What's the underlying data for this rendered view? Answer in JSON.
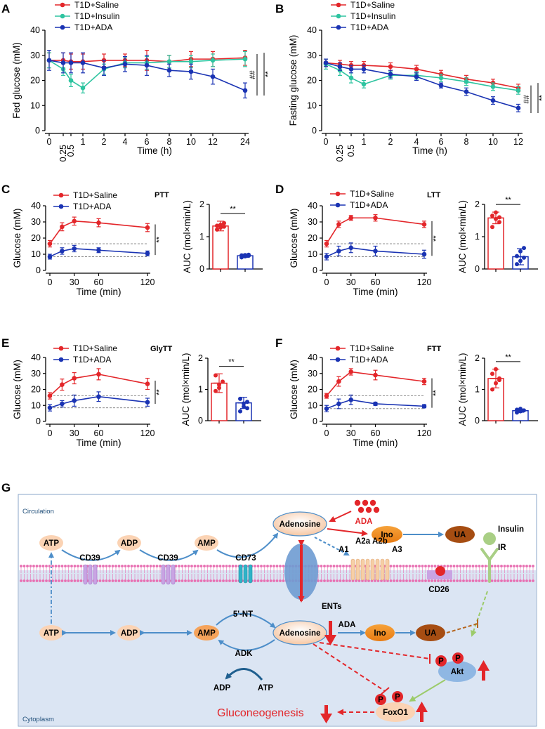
{
  "colors": {
    "saline": "#e3262a",
    "insulin": "#2ec4a0",
    "ada": "#1a33b3",
    "arrow_blue": "#4d8ec9",
    "cytoplasm": "#dbe5f3",
    "membrane": "#e86fb2",
    "node_orange": "#f08d1f",
    "node_peach": "#fbd3b4",
    "node_brown": "#a64d12"
  },
  "chart_data": [
    {
      "id": "A",
      "type": "line",
      "letter": "A",
      "ylabel": "Fed glucose (mM)",
      "xlabel": "Time (h)",
      "ylim": [
        0,
        40
      ],
      "yticks": [
        0,
        10,
        20,
        30,
        40
      ],
      "x": [
        0,
        0.25,
        0.5,
        1,
        2,
        4,
        6,
        8,
        10,
        12,
        24
      ],
      "xtick_labels": [
        "0",
        "0.25",
        "0.5",
        "1",
        "2",
        "4",
        "6",
        "8",
        "10",
        "12",
        "24"
      ],
      "rotated_ticks": [
        1,
        2
      ],
      "series": [
        {
          "name": "T1D+Saline",
          "values": [
            28,
            28,
            27.5,
            27.5,
            28,
            28,
            28,
            27.5,
            28.5,
            28.5,
            29
          ],
          "err": [
            3,
            3,
            3,
            3,
            2.5,
            2.5,
            4,
            2.5,
            3,
            3,
            3
          ]
        },
        {
          "name": "T1D+Insulin",
          "values": [
            28,
            24.5,
            20,
            17,
            24.5,
            27,
            27,
            27.5,
            27.5,
            28,
            28.5
          ],
          "err": [
            3,
            2.5,
            2.5,
            2,
            2,
            2,
            2.5,
            2.5,
            2.5,
            2.5,
            3
          ]
        },
        {
          "name": "T1D+ADA",
          "values": [
            28,
            27,
            27,
            27,
            25,
            26.5,
            26,
            24,
            23.5,
            21.5,
            16
          ],
          "err": [
            4,
            4,
            4,
            4,
            3,
            3,
            4,
            2.5,
            3,
            3,
            3
          ]
        }
      ],
      "legend": [
        "T1D+Saline",
        "T1D+Insulin",
        "T1D+ADA"
      ],
      "annotations": [
        "##",
        "**"
      ]
    },
    {
      "id": "B",
      "type": "line",
      "letter": "B",
      "ylabel": "Fasting glucose (mM)",
      "xlabel": "Time (h)",
      "ylim": [
        0,
        40
      ],
      "yticks": [
        0,
        10,
        20,
        30,
        40
      ],
      "x": [
        0,
        0.25,
        0.5,
        1,
        2,
        4,
        6,
        8,
        10,
        12
      ],
      "xtick_labels": [
        "0",
        "0.25",
        "0.5",
        "1",
        "2",
        "4",
        "6",
        "8",
        "10",
        "12"
      ],
      "rotated_ticks": [
        1,
        2
      ],
      "series": [
        {
          "name": "T1D+Saline",
          "values": [
            27,
            26.5,
            26,
            26,
            25.5,
            24.5,
            22.5,
            20.5,
            19,
            17
          ],
          "err": [
            1.5,
            1.5,
            1.5,
            1.5,
            1.5,
            1.5,
            1.5,
            1.5,
            1.5,
            1.5
          ]
        },
        {
          "name": "T1D+Insulin",
          "values": [
            26.5,
            24,
            21,
            18.5,
            22,
            22,
            21,
            19.5,
            17.5,
            16
          ],
          "err": [
            2,
            2,
            2,
            1.5,
            1.5,
            1.5,
            1.5,
            1.5,
            1.5,
            1.5
          ]
        },
        {
          "name": "T1D+ADA",
          "values": [
            27,
            25.5,
            24.5,
            24.5,
            22.5,
            21.5,
            18,
            15.5,
            12,
            9
          ],
          "err": [
            1.5,
            1.5,
            1.5,
            1.5,
            1.5,
            1.5,
            1,
            1.5,
            1.5,
            1.5
          ]
        }
      ],
      "legend": [
        "T1D+Saline",
        "T1D+Insulin",
        "T1D+ADA"
      ],
      "annotations": [
        "##",
        "**"
      ]
    },
    {
      "id": "C",
      "type": "line",
      "letter": "C",
      "title": "PTT",
      "ylabel": "Glucose (mM)",
      "xlabel": "Time (min)",
      "ylim": [
        0,
        40
      ],
      "yticks": [
        0,
        10,
        20,
        30,
        40
      ],
      "x": [
        0,
        15,
        30,
        60,
        120
      ],
      "xticks": [
        0,
        30,
        60,
        120
      ],
      "series": [
        {
          "name": "T1D+Saline",
          "values": [
            16.5,
            27,
            30.5,
            29.5,
            26.5
          ],
          "err": [
            2,
            2.5,
            2.5,
            2.5,
            2.5
          ]
        },
        {
          "name": "T1D+ADA",
          "values": [
            8.5,
            12,
            13.5,
            12.5,
            10.5
          ],
          "err": [
            1.5,
            2,
            2,
            1.5,
            1.5
          ]
        }
      ],
      "baselines": [
        16.5,
        8.5
      ],
      "legend": [
        "T1D+Saline",
        "T1D+ADA"
      ],
      "annotations": [
        "**"
      ]
    },
    {
      "id": "C2",
      "type": "bar",
      "ylabel": "AUC (mol×min/L)",
      "ylim": [
        0,
        2
      ],
      "yticks": [
        0,
        1,
        2
      ],
      "categories": [
        "T1D+Saline",
        "T1D+ADA"
      ],
      "values": [
        1.33,
        0.41
      ],
      "err": [
        0.15,
        0.05
      ],
      "points": [
        [
          1.22,
          1.28,
          1.31,
          1.34,
          1.37,
          1.42
        ],
        [
          0.36,
          0.39,
          0.41,
          0.42,
          0.43,
          0.44
        ]
      ],
      "annotations": [
        "**"
      ]
    },
    {
      "id": "D",
      "type": "line",
      "letter": "D",
      "title": "LTT",
      "ylabel": "Glucose (mM)",
      "xlabel": "Time (min)",
      "ylim": [
        0,
        40
      ],
      "yticks": [
        0,
        10,
        20,
        30,
        40
      ],
      "x": [
        0,
        15,
        30,
        60,
        120
      ],
      "xticks": [
        0,
        30,
        60,
        120
      ],
      "series": [
        {
          "name": "T1D+Saline",
          "values": [
            16.5,
            28.5,
            32.5,
            32.5,
            28.5
          ],
          "err": [
            2,
            2,
            1.5,
            2,
            2
          ]
        },
        {
          "name": "T1D+ADA",
          "values": [
            8.5,
            12,
            14,
            12,
            10
          ],
          "err": [
            2,
            3,
            3,
            3,
            2.5
          ]
        }
      ],
      "baselines": [
        16.5,
        8.5
      ],
      "legend": [
        "T1D+Saline",
        "T1D+ADA"
      ],
      "annotations": [
        "**"
      ]
    },
    {
      "id": "D2",
      "type": "bar",
      "ylabel": "AUC (mol×min/L)",
      "ylim": [
        0,
        2
      ],
      "yticks": [
        0,
        1,
        2
      ],
      "categories": [
        "T1D+Saline",
        "T1D+ADA"
      ],
      "values": [
        1.58,
        0.38
      ],
      "err": [
        0.18,
        0.25
      ],
      "points": [
        [
          1.3,
          1.55,
          1.6,
          1.65,
          1.75,
          1.45
        ],
        [
          0.15,
          0.25,
          0.35,
          0.4,
          0.55,
          0.65
        ]
      ],
      "annotations": [
        "**"
      ]
    },
    {
      "id": "E",
      "type": "line",
      "letter": "E",
      "title": "GlyTT",
      "ylabel": "Glucose (mM)",
      "xlabel": "Time (min)",
      "ylim": [
        0,
        40
      ],
      "yticks": [
        0,
        10,
        20,
        30,
        40
      ],
      "x": [
        0,
        15,
        30,
        60,
        120
      ],
      "xticks": [
        0,
        30,
        60,
        120
      ],
      "series": [
        {
          "name": "T1D+Saline",
          "values": [
            16,
            23,
            27,
            29.5,
            23.5
          ],
          "err": [
            2,
            3.5,
            3.5,
            3.5,
            3.5
          ]
        },
        {
          "name": "T1D+ADA",
          "values": [
            8.5,
            11,
            13,
            15.5,
            12
          ],
          "err": [
            2,
            2,
            3.5,
            3,
            2.5
          ]
        }
      ],
      "baselines": [
        16,
        8.5
      ],
      "legend": [
        "T1D+Saline",
        "T1D+ADA"
      ],
      "annotations": [
        "**"
      ]
    },
    {
      "id": "E2",
      "type": "bar",
      "ylabel": "AUC (mol×min/L)",
      "ylim": [
        0,
        2
      ],
      "yticks": [
        0,
        1,
        2
      ],
      "categories": [
        "T1D+Saline",
        "T1D+ADA"
      ],
      "values": [
        1.2,
        0.57
      ],
      "err": [
        0.3,
        0.18
      ],
      "points": [
        [
          0.95,
          1.15,
          1.25,
          1.45,
          1.05
        ],
        [
          0.3,
          0.45,
          0.6,
          0.7,
          0.55,
          0.4
        ]
      ],
      "annotations": [
        "**"
      ]
    },
    {
      "id": "F",
      "type": "line",
      "letter": "F",
      "title": "FTT",
      "ylabel": "Glucose (mM)",
      "xlabel": "Time (min)",
      "ylim": [
        0,
        40
      ],
      "yticks": [
        0,
        10,
        20,
        30,
        40
      ],
      "x": [
        0,
        15,
        30,
        60,
        120
      ],
      "xticks": [
        0,
        30,
        60,
        120
      ],
      "series": [
        {
          "name": "T1D+Saline",
          "values": [
            16,
            25,
            31,
            29,
            25
          ],
          "err": [
            1.5,
            3,
            2,
            3,
            2
          ]
        },
        {
          "name": "T1D+ADA",
          "values": [
            8,
            11,
            13.5,
            11,
            9.5
          ],
          "err": [
            2,
            3,
            3,
            1,
            1
          ]
        }
      ],
      "baselines": [
        16,
        8
      ],
      "legend": [
        "T1D+Saline",
        "T1D+ADA"
      ],
      "annotations": [
        "**"
      ]
    },
    {
      "id": "F2",
      "type": "bar",
      "ylabel": "AUC (mol×min/L)",
      "ylim": [
        0,
        2
      ],
      "yticks": [
        0,
        1,
        2
      ],
      "categories": [
        "T1D+Saline",
        "T1D+ADA"
      ],
      "values": [
        1.35,
        0.32
      ],
      "err": [
        0.3,
        0.05
      ],
      "points": [
        [
          1.0,
          1.2,
          1.35,
          1.5,
          1.65,
          1.3
        ],
        [
          0.26,
          0.3,
          0.33,
          0.35,
          0.38
        ]
      ],
      "annotations": [
        "**"
      ]
    }
  ],
  "panelG": {
    "letter": "G",
    "circulation_label": "Circulation",
    "cytoplasm_label": "Cytoplasm",
    "extracellular": {
      "atp": "ATP",
      "adp": "ADP",
      "amp": "AMP",
      "adenosine": "Adenosine",
      "cd39_1": "CD39",
      "cd39_2": "CD39",
      "cd73": "CD73",
      "ada": "ADA",
      "ino": "Ino",
      "ua": "UA",
      "insulin": "Insulin",
      "ir": "IR"
    },
    "membrane": {
      "ents": "ENTs",
      "a1": "A1",
      "a2a": "A2a",
      "a2b": "A2b",
      "a3": "A3",
      "cd26": "CD26"
    },
    "intracellular": {
      "atp": "ATP",
      "adp": "ADP",
      "amp": "AMP",
      "nt5": "5'-NT",
      "adk": "ADK",
      "adk_adp": "ADP",
      "adk_atp": "ATP",
      "adenosine": "Adenosine",
      "ada": "ADA",
      "ino": "Ino",
      "ua": "UA",
      "akt": "Akt",
      "foxo1": "FoxO1",
      "p": "P",
      "gluconeogenesis": "Gluconeogenesis"
    }
  }
}
